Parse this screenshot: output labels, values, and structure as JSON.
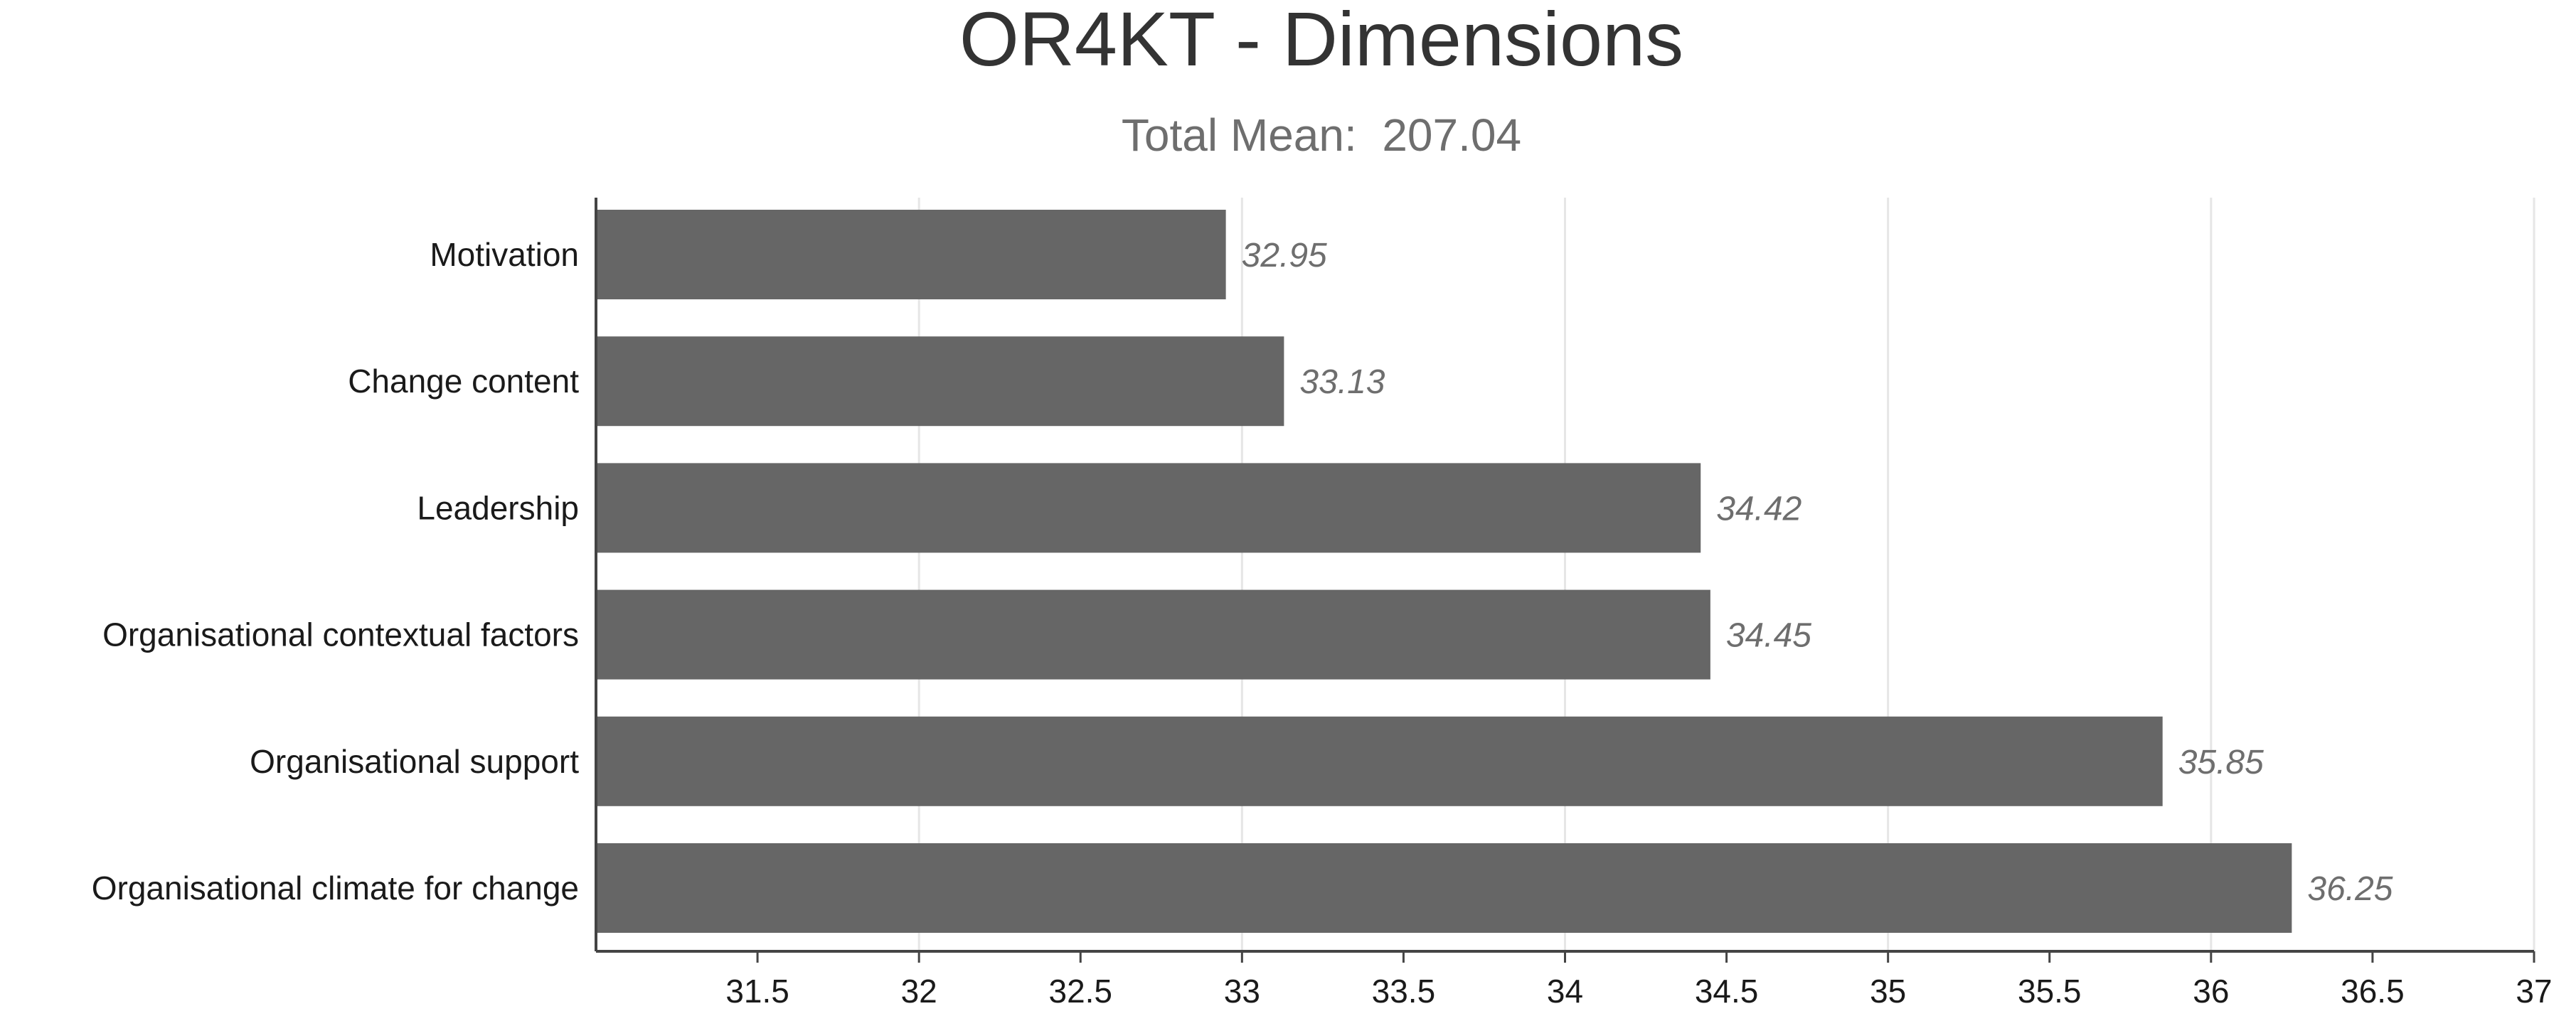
{
  "chart_data": {
    "type": "bar",
    "orientation": "horizontal",
    "title": "OR4KT - Dimensions",
    "subtitle": "Total Mean:  207.04",
    "xlabel": "",
    "ylabel": "",
    "categories": [
      "Motivation",
      "Change content",
      "Leadership",
      "Organisational contextual factors",
      "Organisational support",
      "Organisational climate for change"
    ],
    "values": [
      32.95,
      33.13,
      34.42,
      34.45,
      35.85,
      36.25
    ],
    "data_labels": [
      "32.95",
      "33.13",
      "34.42",
      "34.45",
      "35.85",
      "36.25"
    ],
    "xlim": [
      31,
      37
    ],
    "x_ticks": [
      31.5,
      32,
      32.5,
      33,
      33.5,
      34,
      34.5,
      35,
      35.5,
      36,
      36.5,
      37
    ],
    "x_tick_labels": [
      "31.5",
      "32",
      "32.5",
      "33",
      "33.5",
      "34",
      "34.5",
      "35",
      "35.5",
      "36",
      "36.5",
      "37"
    ],
    "grid": true,
    "legend": "none",
    "colors": {
      "bar": "#666666",
      "grid": "#e6e6e6",
      "axis": "#444444",
      "title": "#333333",
      "subtitle": "#6e6e6e",
      "category_label": "#1a1a1a",
      "tick_label": "#1a1a1a",
      "data_label": "#6e6e6e"
    }
  }
}
